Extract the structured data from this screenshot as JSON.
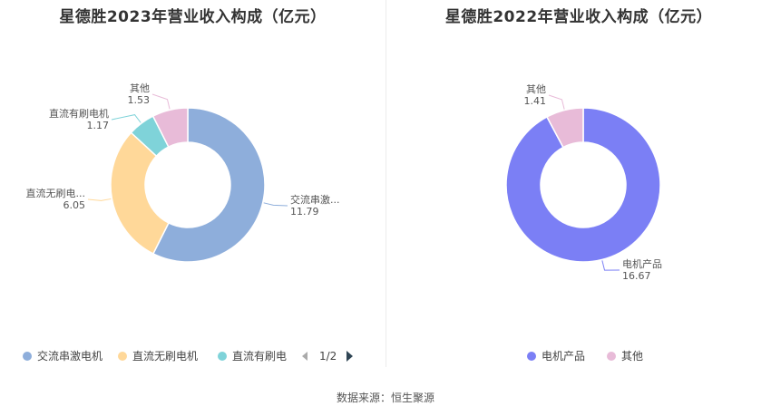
{
  "source_label": "数据来源：恒生聚源",
  "legend_pager": "1/2",
  "chart_data": [
    {
      "type": "pie",
      "title": "星德胜2023年营业收入构成（亿元）",
      "slices": [
        {
          "label": "交流串激电机",
          "short": "交流串激...",
          "value": 11.79,
          "color": "#8eaedb"
        },
        {
          "label": "直流无刷电机",
          "short": "直流无刷电...",
          "value": 6.05,
          "color": "#ffd899"
        },
        {
          "label": "直流有刷电机",
          "short": "直流有刷电机",
          "value": 1.17,
          "color": "#7fd3d9"
        },
        {
          "label": "其他",
          "short": "其他",
          "value": 1.53,
          "color": "#e8bbd8"
        }
      ],
      "legend": [
        "交流串激电机",
        "直流无刷电机",
        "直流有刷电"
      ]
    },
    {
      "type": "pie",
      "title": "星德胜2022年营业收入构成（亿元）",
      "slices": [
        {
          "label": "电机产品",
          "short": "电机产品",
          "value": 16.67,
          "color": "#7b7ff5"
        },
        {
          "label": "其他",
          "short": "其他",
          "value": 1.41,
          "color": "#e8bbd8"
        }
      ],
      "legend": [
        "电机产品",
        "其他"
      ]
    }
  ]
}
